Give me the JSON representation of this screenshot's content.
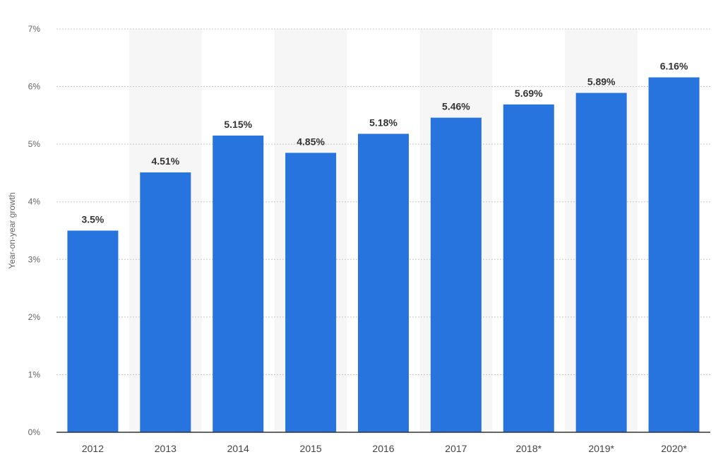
{
  "chart_data": {
    "type": "bar",
    "categories": [
      "2012",
      "2013",
      "2014",
      "2015",
      "2016",
      "2017",
      "2018*",
      "2019*",
      "2020*"
    ],
    "values": [
      3.5,
      4.51,
      5.15,
      4.85,
      5.18,
      5.46,
      5.69,
      5.89,
      6.16
    ],
    "data_labels": [
      "3.5%",
      "4.51%",
      "5.15%",
      "4.85%",
      "5.18%",
      "5.46%",
      "5.69%",
      "5.89%",
      "6.16%"
    ],
    "ylabel": "Year-on-year growth",
    "ylim": [
      0,
      7
    ],
    "yticks": [
      0,
      1,
      2,
      3,
      4,
      5,
      6,
      7
    ],
    "ytick_labels": [
      "0%",
      "1%",
      "2%",
      "3%",
      "4%",
      "5%",
      "6%",
      "7%"
    ],
    "grid": true,
    "bar_color": "#2874de",
    "band_color": "#f6f6f6"
  }
}
